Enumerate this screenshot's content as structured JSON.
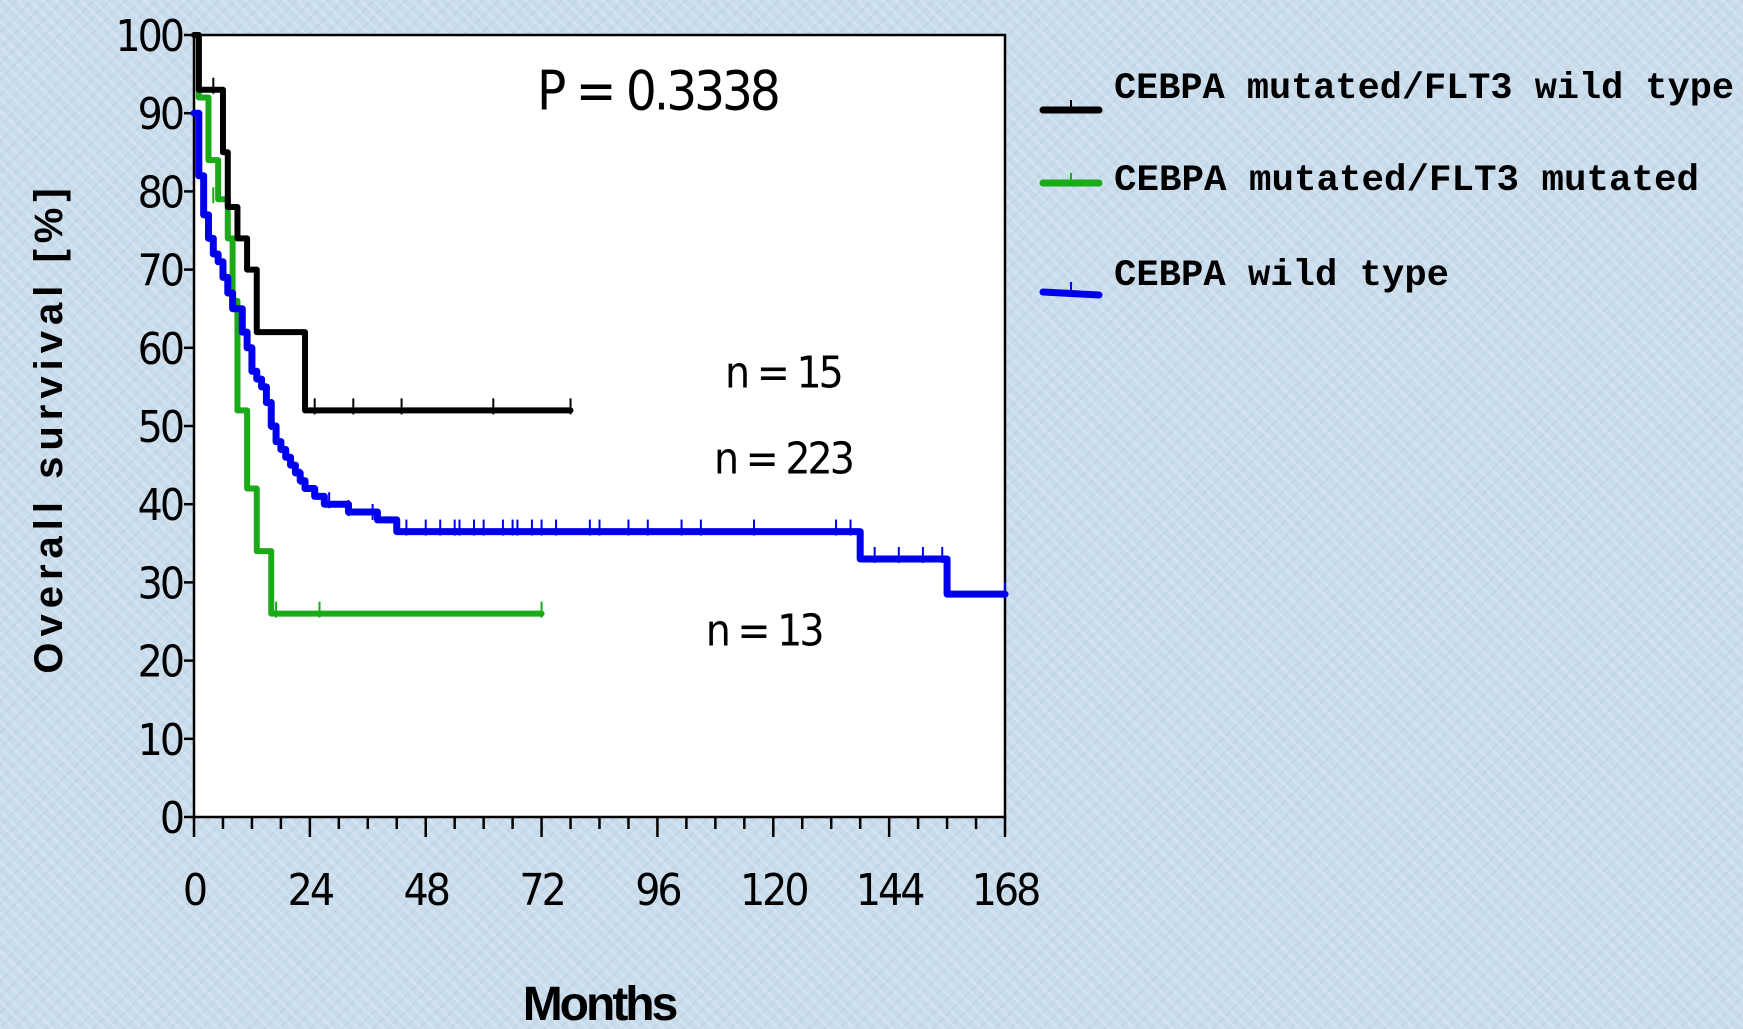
{
  "chart_data": {
    "type": "line",
    "ylabel": "Overall survival [%]",
    "xlabel": "Months",
    "xlim": [
      0,
      168
    ],
    "ylim": [
      0,
      100
    ],
    "x_ticks": [
      0,
      24,
      48,
      72,
      96,
      120,
      144,
      168
    ],
    "x_minor_step": 6,
    "y_ticks": [
      0,
      10,
      20,
      30,
      40,
      50,
      60,
      70,
      80,
      90,
      100
    ],
    "grid": false,
    "legend_position": "right",
    "annotations": [
      {
        "text": "P = 0.3338",
        "x": 96,
        "y": 93
      },
      {
        "text": "n = 15",
        "x": 122,
        "y": 57
      },
      {
        "text": "n = 223",
        "x": 122,
        "y": 46
      },
      {
        "text": "n = 13",
        "x": 118,
        "y": 24
      }
    ],
    "series": [
      {
        "name": "CEBPA mutated/FLT3 wild type",
        "color": "#000000",
        "step": [
          [
            0,
            100
          ],
          [
            1,
            93
          ],
          [
            5,
            93
          ],
          [
            6,
            85
          ],
          [
            7,
            78
          ],
          [
            9,
            74
          ],
          [
            11,
            70
          ],
          [
            13,
            62
          ],
          [
            16,
            62
          ],
          [
            23,
            52
          ],
          [
            78,
            52
          ]
        ],
        "censors": [
          [
            4,
            93
          ],
          [
            25,
            52
          ],
          [
            33,
            52
          ],
          [
            43,
            52
          ],
          [
            62,
            52
          ],
          [
            78,
            52
          ]
        ]
      },
      {
        "name": "CEBPA mutated/FLT3 mutated",
        "color": "#1aaa1a",
        "step": [
          [
            0,
            100
          ],
          [
            1,
            92
          ],
          [
            3,
            84
          ],
          [
            5,
            79
          ],
          [
            7,
            74
          ],
          [
            8,
            66
          ],
          [
            9,
            52
          ],
          [
            11,
            42
          ],
          [
            13,
            34
          ],
          [
            16,
            26
          ],
          [
            72,
            26
          ]
        ],
        "censors": [
          [
            4,
            79
          ],
          [
            17,
            26
          ],
          [
            26,
            26
          ],
          [
            72,
            26
          ]
        ]
      },
      {
        "name": "CEBPA wild type",
        "color": "#0000ee",
        "step": [
          [
            0,
            90
          ],
          [
            1,
            82
          ],
          [
            2,
            77
          ],
          [
            3,
            74
          ],
          [
            4,
            72
          ],
          [
            5,
            71
          ],
          [
            6,
            69
          ],
          [
            7,
            67
          ],
          [
            8,
            65
          ],
          [
            10,
            62
          ],
          [
            11,
            60
          ],
          [
            12,
            57
          ],
          [
            13,
            56
          ],
          [
            14,
            55
          ],
          [
            15,
            53
          ],
          [
            16,
            50
          ],
          [
            17,
            48
          ],
          [
            18,
            47
          ],
          [
            19,
            46
          ],
          [
            20,
            45
          ],
          [
            21,
            44
          ],
          [
            22,
            43
          ],
          [
            23,
            42
          ],
          [
            25,
            41
          ],
          [
            27,
            40
          ],
          [
            30,
            40
          ],
          [
            32,
            39
          ],
          [
            35,
            39
          ],
          [
            38,
            38
          ],
          [
            40,
            38
          ],
          [
            42,
            36.5
          ],
          [
            70,
            36.5
          ],
          [
            100,
            36.5
          ],
          [
            137,
            36.5
          ],
          [
            138,
            33
          ],
          [
            155,
            33
          ],
          [
            156,
            28.5
          ],
          [
            168,
            28.5
          ]
        ],
        "censors": [
          [
            16,
            50
          ],
          [
            22,
            43
          ],
          [
            28,
            40
          ],
          [
            32,
            39
          ],
          [
            37,
            38.5
          ],
          [
            44,
            36.5
          ],
          [
            48,
            36.5
          ],
          [
            51,
            36.5
          ],
          [
            54,
            36.5
          ],
          [
            55,
            36.5
          ],
          [
            58,
            36.5
          ],
          [
            60,
            36.5
          ],
          [
            64,
            36.5
          ],
          [
            66,
            36.5
          ],
          [
            67,
            36.5
          ],
          [
            70,
            36.5
          ],
          [
            72,
            36.5
          ],
          [
            75,
            36.5
          ],
          [
            82,
            36.5
          ],
          [
            84,
            36.5
          ],
          [
            90,
            36.5
          ],
          [
            94,
            36.5
          ],
          [
            101,
            36.5
          ],
          [
            105,
            36.5
          ],
          [
            116,
            36.5
          ],
          [
            133,
            36.5
          ],
          [
            136,
            36.5
          ],
          [
            141,
            33
          ],
          [
            146,
            33
          ],
          [
            151,
            33
          ],
          [
            155,
            33
          ],
          [
            168,
            28.5
          ]
        ]
      }
    ]
  }
}
